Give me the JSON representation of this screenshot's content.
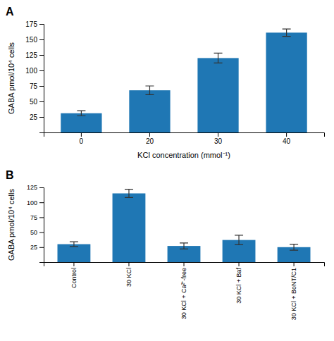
{
  "chart_data": [
    {
      "type": "bar",
      "title": "A",
      "categories": [
        "0",
        "20",
        "30",
        "40"
      ],
      "values": [
        31,
        68,
        120,
        161
      ],
      "errors": [
        4,
        7,
        8,
        6
      ],
      "x_label": "KCl concentration (mmol⁻¹)",
      "y_label": "GABA pmol/10⁴ cells",
      "ylim": [
        0,
        175
      ],
      "yticks": [
        25,
        50,
        75,
        100,
        125,
        150,
        175
      ]
    },
    {
      "type": "bar",
      "title": "B",
      "categories": [
        "Control",
        "30 KCl",
        "30 KCl + Ca²⁺-free",
        "30 KCl + Baf",
        "30 KCl + BoNT/C1"
      ],
      "values": [
        30,
        115,
        27,
        37,
        25
      ],
      "errors": [
        4,
        7,
        5,
        8,
        5
      ],
      "y_label": "GABA pmol/10⁴ cells",
      "ylim": [
        0,
        125
      ],
      "yticks": [
        25,
        50,
        75,
        100,
        125
      ]
    }
  ]
}
